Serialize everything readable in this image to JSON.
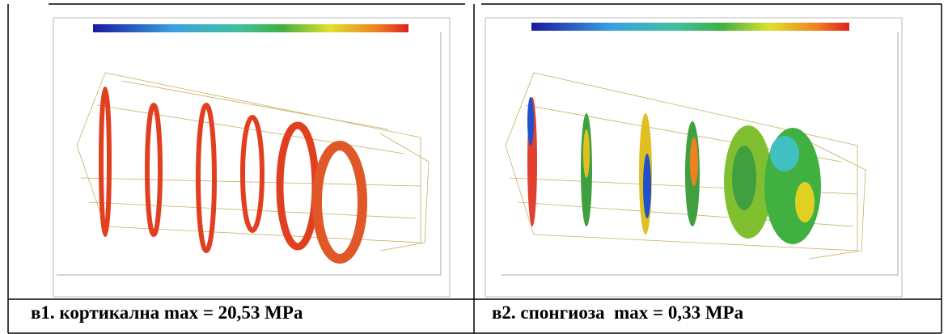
{
  "panels": [
    {
      "caption": "в1. кортикална max = 20,53 MPa"
    },
    {
      "caption": "в2. спонгиоза  max = 0,33 MPa"
    }
  ]
}
